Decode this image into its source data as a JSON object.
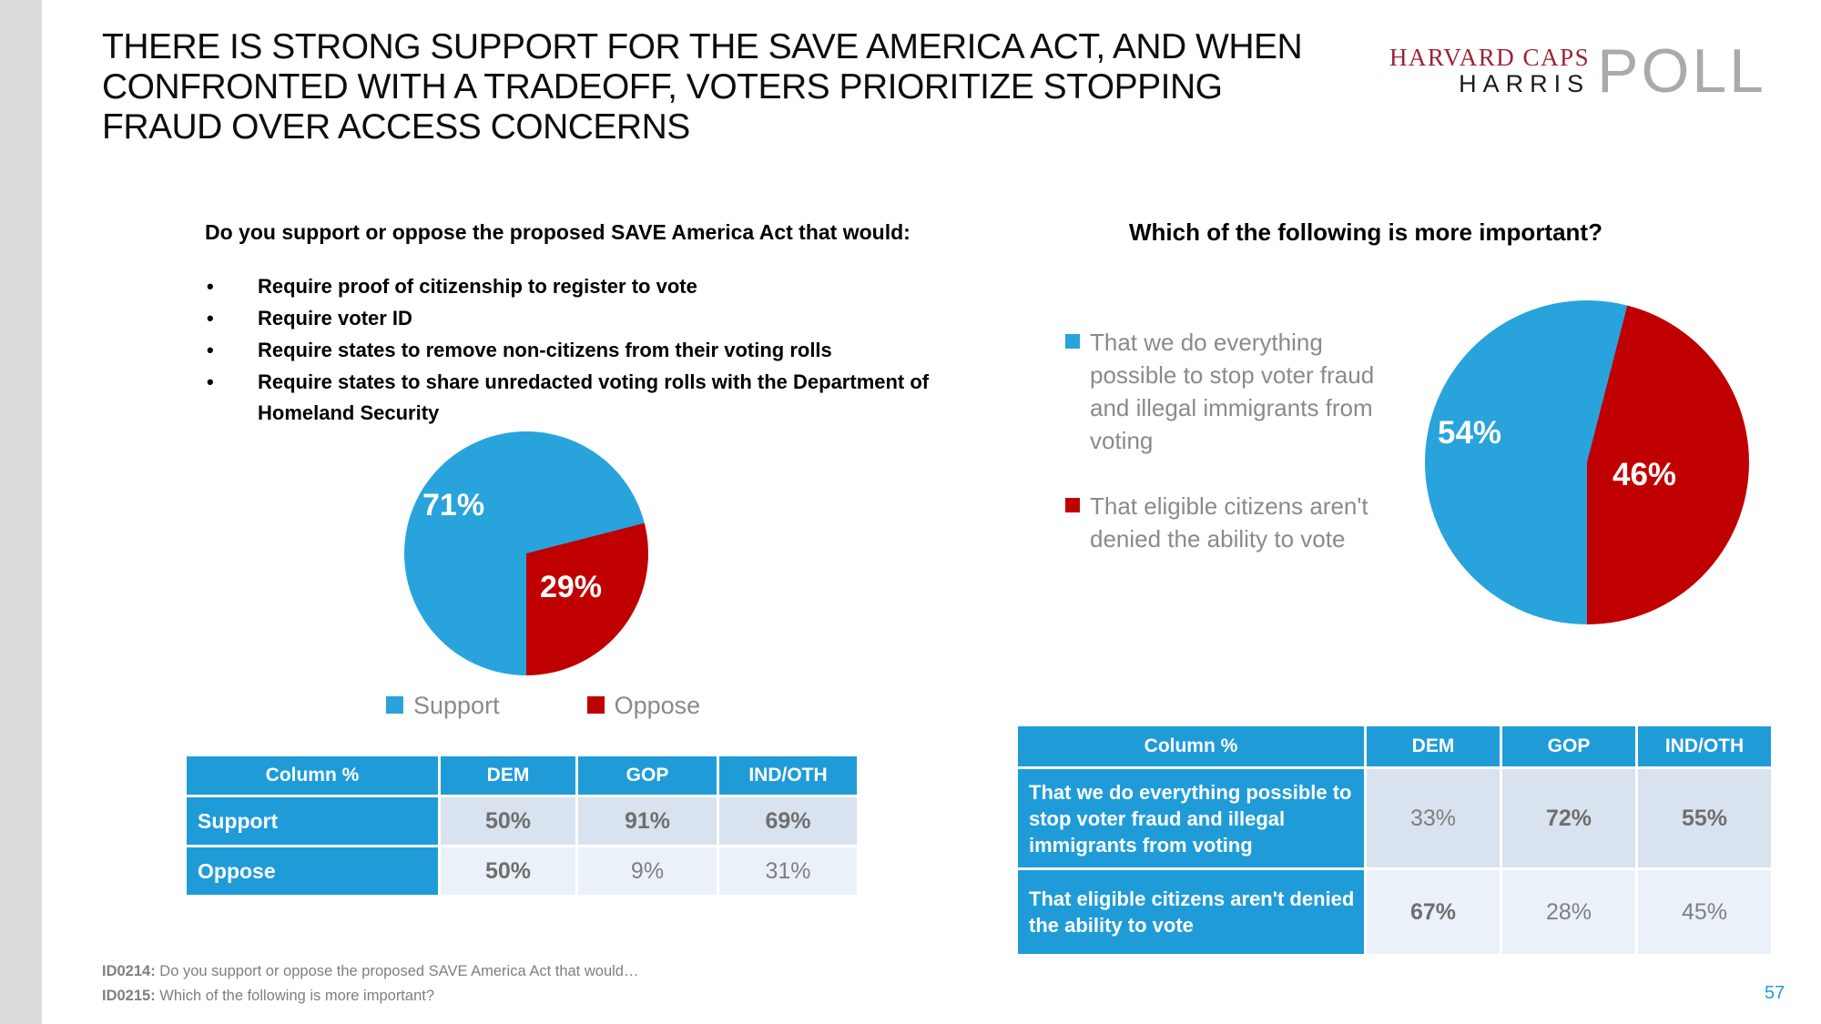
{
  "slide": {
    "title_lines": [
      "THERE IS STRONG SUPPORT FOR THE SAVE AMERICA ACT, AND WHEN",
      "CONFRONTED WITH A TRADEOFF, VOTERS PRIORITIZE STOPPING",
      "FRAUD OVER ACCESS CONCERNS"
    ],
    "page_number": "57",
    "footnotes": [
      {
        "id": "ID0214:",
        "text": "Do you support or oppose the proposed SAVE America Act that would…"
      },
      {
        "id": "ID0215:",
        "text": "Which of the following is more important?"
      }
    ]
  },
  "logo": {
    "line1": "HARVARD CAPS",
    "line2": "HARRIS",
    "poll": "POLL"
  },
  "theme": {
    "pie_blue": "#29A3DC",
    "pie_red": "#C00000",
    "table_header_blue": "#1F9CD8",
    "table_row1_bg": "#D9E2EF",
    "table_row2_bg": "#EBF1F8",
    "value_text_gray": "#7F7F7F",
    "legend_text_gray": "#8A8A8A",
    "logo_crimson": "#9D2235",
    "logo_poll_gray": "#A8AAAD",
    "edge_strip_gray": "#DBDBDB",
    "page_number_blue": "#1F9CD8"
  },
  "left": {
    "question": "Do you support or oppose the proposed SAVE America Act that would:",
    "bullets": [
      "Require proof of citizenship to register to vote",
      "Require voter ID",
      "Require states to remove non-citizens from their voting rolls",
      "Require states to share unredacted voting rolls with the Department of Homeland Security"
    ],
    "table": {
      "headers": [
        "Column %",
        "DEM",
        "GOP",
        "IND/OTH"
      ],
      "rows": [
        {
          "label": "Support",
          "values": [
            {
              "v": "50%",
              "b": true
            },
            {
              "v": "91%",
              "b": true
            },
            {
              "v": "69%",
              "b": true
            }
          ]
        },
        {
          "label": "Oppose",
          "values": [
            {
              "v": "50%",
              "b": true
            },
            {
              "v": "9%",
              "b": false
            },
            {
              "v": "31%",
              "b": false
            }
          ]
        }
      ]
    }
  },
  "right": {
    "question": "Which of the following is more important?",
    "table": {
      "headers": [
        "Column %",
        "DEM",
        "GOP",
        "IND/OTH"
      ],
      "rows": [
        {
          "label": "That we do everything possible to stop voter fraud and illegal immigrants from voting",
          "values": [
            {
              "v": "33%",
              "b": false
            },
            {
              "v": "72%",
              "b": true
            },
            {
              "v": "55%",
              "b": true
            }
          ]
        },
        {
          "label": "That eligible citizens aren't denied the ability to vote",
          "values": [
            {
              "v": "67%",
              "b": true
            },
            {
              "v": "28%",
              "b": false
            },
            {
              "v": "45%",
              "b": false
            }
          ]
        }
      ]
    }
  },
  "chart_data": [
    {
      "type": "pie",
      "title": "Do you support or oppose the proposed SAVE America Act that would:",
      "categories": [
        "Support",
        "Oppose"
      ],
      "values": [
        71,
        29
      ],
      "value_labels": [
        "71%",
        "29%"
      ],
      "colors": [
        "#29A3DC",
        "#C00000"
      ],
      "legend_position": "bottom",
      "start_angle_deg": 180
    },
    {
      "type": "pie",
      "title": "Which of the following is more important?",
      "categories": [
        "That we do everything possible to stop voter fraud and illegal immigrants from voting",
        "That eligible citizens aren't denied the ability to vote"
      ],
      "values": [
        54,
        46
      ],
      "value_labels": [
        "54%",
        "46%"
      ],
      "colors": [
        "#29A3DC",
        "#C00000"
      ],
      "legend_position": "left",
      "start_angle_deg": 180
    }
  ]
}
